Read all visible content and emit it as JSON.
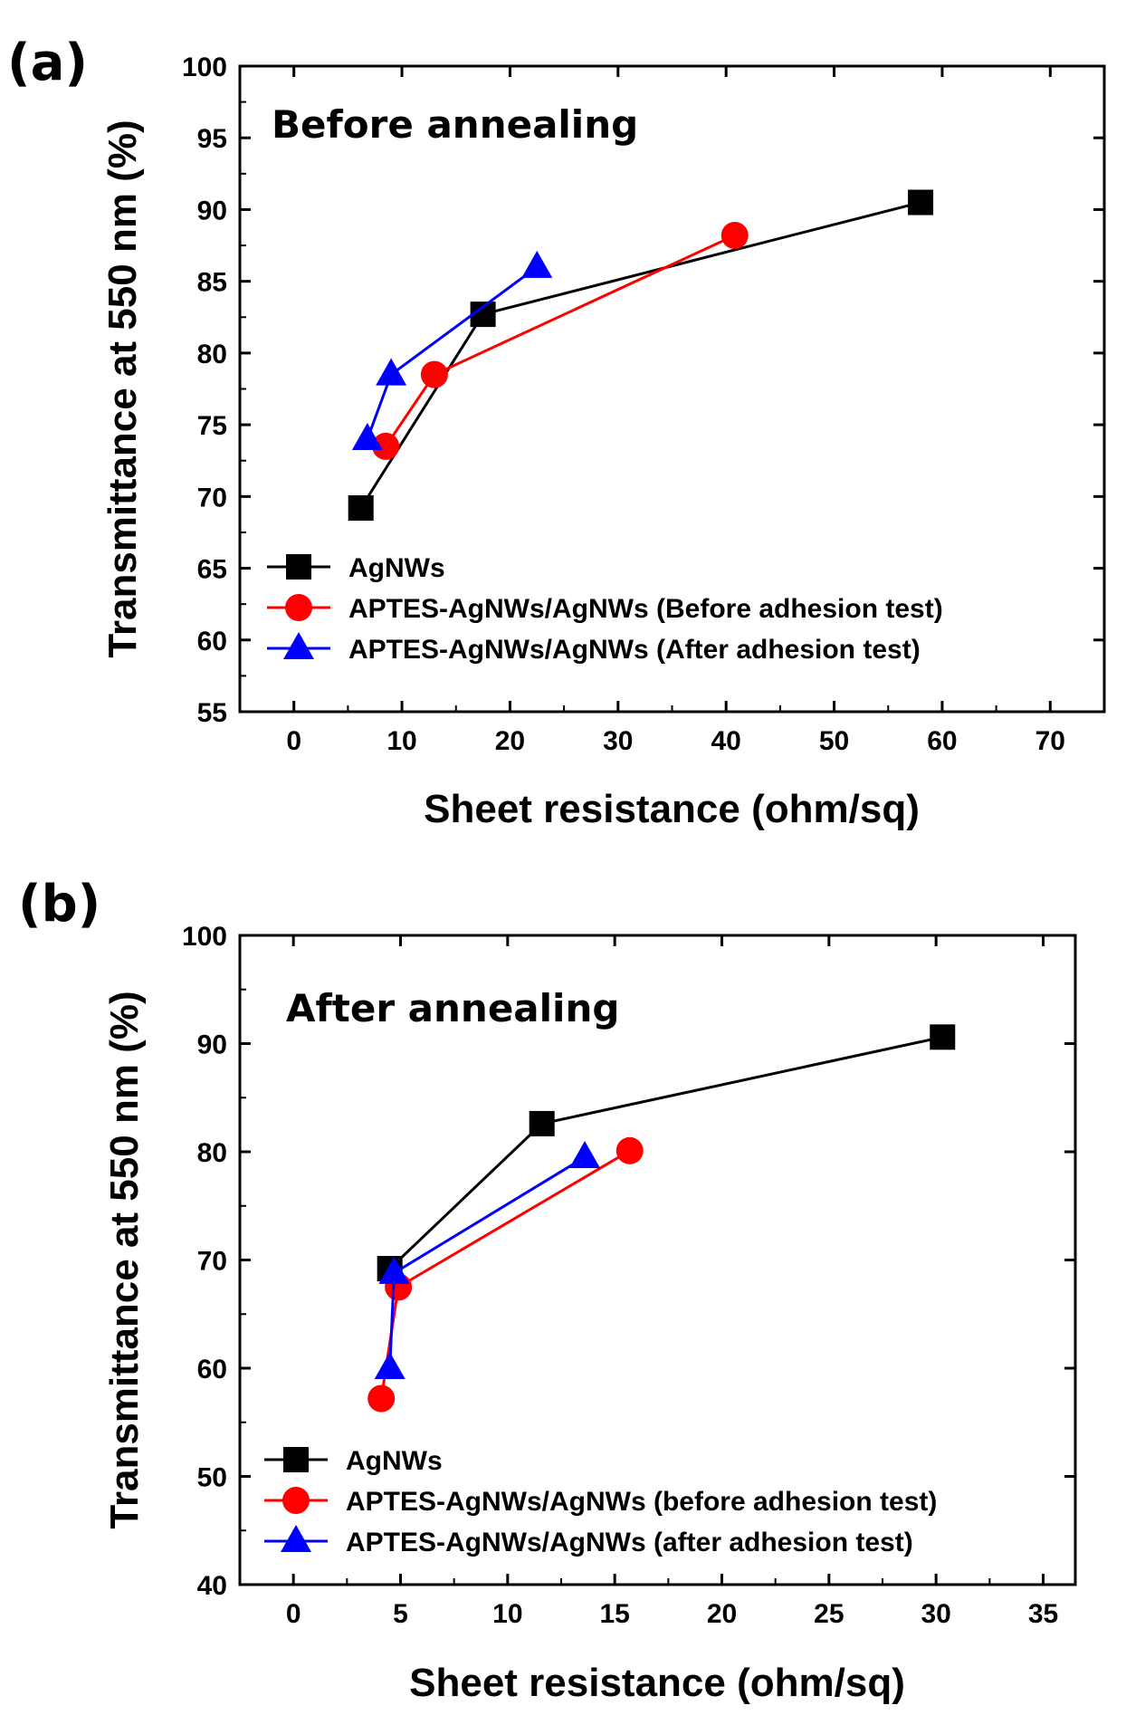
{
  "chart_data": [
    {
      "panel_label": "(a)",
      "type": "line",
      "annotation": "Before annealing",
      "xlabel": "Sheet resistance (ohm/sq)",
      "ylabel": "Transmittance at 550 nm (%)",
      "xlim": [
        -5,
        75
      ],
      "ylim": [
        55,
        100
      ],
      "xticks": [
        0,
        10,
        20,
        30,
        40,
        50,
        60,
        70
      ],
      "yticks": [
        55,
        60,
        65,
        70,
        75,
        80,
        85,
        90,
        95,
        100
      ],
      "legend_position": "bottom-left",
      "series": [
        {
          "name": "AgNWs",
          "color": "#000000",
          "marker": "square",
          "points": [
            [
              6.2,
              69.2
            ],
            [
              17.5,
              82.7
            ],
            [
              58.0,
              90.5
            ]
          ]
        },
        {
          "name": "APTES-AgNWs/AgNWs (Before adhesion test)",
          "color": "#ff0000",
          "marker": "circle",
          "points": [
            [
              8.5,
              73.5
            ],
            [
              13.0,
              78.5
            ],
            [
              40.8,
              88.2
            ]
          ]
        },
        {
          "name": "APTES-AgNWs/AgNWs (After adhesion test)",
          "color": "#0000ff",
          "marker": "triangle",
          "points": [
            [
              6.8,
              74.0
            ],
            [
              9.0,
              78.5
            ],
            [
              22.5,
              86.0
            ]
          ]
        }
      ]
    },
    {
      "panel_label": "(b)",
      "type": "line",
      "annotation": "After annealing",
      "xlabel": "Sheet resistance (ohm/sq)",
      "ylabel": "Transmittance at 550 nm (%)",
      "xlim": [
        -2.5,
        36.5
      ],
      "ylim": [
        40,
        100
      ],
      "xticks": [
        0,
        5,
        10,
        15,
        20,
        25,
        30,
        35
      ],
      "yticks": [
        40,
        50,
        60,
        70,
        80,
        90,
        100
      ],
      "legend_position": "bottom-left",
      "series": [
        {
          "name": "AgNWs",
          "color": "#000000",
          "marker": "square",
          "points": [
            [
              4.5,
              69.2
            ],
            [
              11.6,
              82.6
            ],
            [
              30.3,
              90.6
            ]
          ]
        },
        {
          "name": "APTES-AgNWs/AgNWs (before adhesion test)",
          "color": "#ff0000",
          "marker": "circle",
          "points": [
            [
              4.1,
              57.2
            ],
            [
              4.9,
              67.5
            ],
            [
              15.7,
              80.1
            ]
          ]
        },
        {
          "name": "APTES-AgNWs/AgNWs (after adhesion test)",
          "color": "#0000ff",
          "marker": "triangle",
          "points": [
            [
              4.5,
              60.0
            ],
            [
              4.7,
              68.8
            ],
            [
              13.6,
              79.5
            ]
          ]
        }
      ]
    }
  ]
}
